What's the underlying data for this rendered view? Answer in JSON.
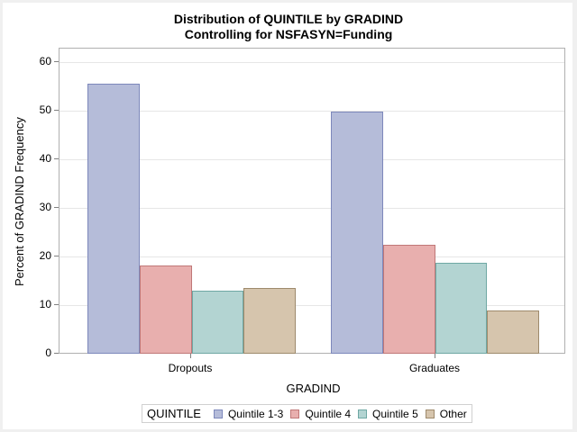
{
  "chart_data": {
    "type": "bar",
    "title": "Distribution of QUINTILE by GRADIND",
    "subtitle": "Controlling for NSFASYN=Funding",
    "xlabel": "GRADIND",
    "ylabel": "Percent of GRADIND Frequency",
    "ylim": [
      0,
      60
    ],
    "yticks": [
      0,
      10,
      20,
      30,
      40,
      50,
      60
    ],
    "grid": true,
    "legend_position": "bottom",
    "legend_title": "QUINTILE",
    "categories": [
      "Dropouts",
      "Graduates"
    ],
    "series": [
      {
        "name": "Quintile 1-3",
        "values": [
          55.5,
          49.8
        ],
        "color": "#b5bcd9",
        "border": "#7d88bb"
      },
      {
        "name": "Quintile 4",
        "values": [
          18.1,
          22.4
        ],
        "color": "#e8afae",
        "border": "#c07878"
      },
      {
        "name": "Quintile 5",
        "values": [
          12.9,
          18.7
        ],
        "color": "#b3d4d2",
        "border": "#6fa8a4"
      },
      {
        "name": "Other",
        "values": [
          13.6,
          8.9
        ],
        "color": "#d6c5ad",
        "border": "#9e8a6c"
      }
    ]
  }
}
